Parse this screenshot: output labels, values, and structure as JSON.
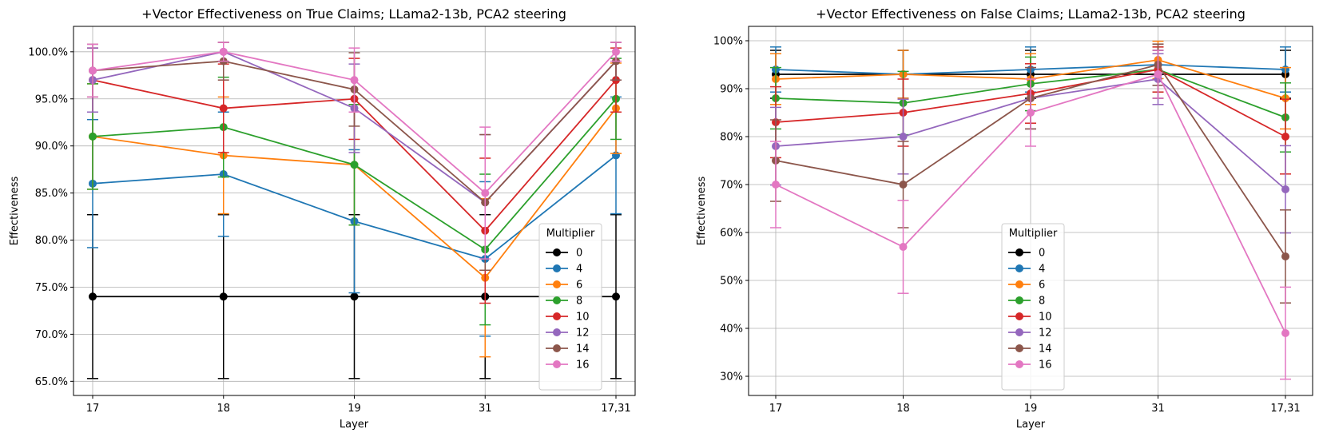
{
  "chart_data": [
    {
      "type": "line",
      "title": "+Vector Effectiveness on True Claims; LLama2-13b, PCA2 steering",
      "xlabel": "Layer",
      "ylabel": "Effectiveness",
      "categories": [
        "17",
        "18",
        "19",
        "31",
        "17,31"
      ],
      "ylim": [
        0.635,
        1.027
      ],
      "yticks": [
        0.65,
        0.7,
        0.75,
        0.8,
        0.85,
        0.9,
        0.95,
        1.0
      ],
      "ytick_labels": [
        "65.0%",
        "70.0%",
        "75.0%",
        "80.0%",
        "85.0%",
        "90.0%",
        "95.0%",
        "100.0%"
      ],
      "grid": true,
      "legend": {
        "title": "Multiplier",
        "placement": "lower-right"
      },
      "series": [
        {
          "name": "0",
          "color": "#000000",
          "values": [
            0.74,
            0.74,
            0.74,
            0.74,
            0.74
          ],
          "err": [
            0.087,
            0.087,
            0.087,
            0.087,
            0.087
          ]
        },
        {
          "name": "4",
          "color": "#1f77b4",
          "values": [
            0.86,
            0.87,
            0.82,
            0.78,
            0.89
          ],
          "err": [
            0.068,
            0.066,
            0.076,
            0.082,
            0.062
          ]
        },
        {
          "name": "6",
          "color": "#ff7f0e",
          "values": [
            0.91,
            0.89,
            0.88,
            0.76,
            0.94
          ],
          "err": [
            0.056,
            0.062,
            0.064,
            0.084,
            0.048
          ]
        },
        {
          "name": "8",
          "color": "#2ca02c",
          "values": [
            0.91,
            0.92,
            0.88,
            0.79,
            0.95
          ],
          "err": [
            0.056,
            0.053,
            0.064,
            0.08,
            0.043
          ]
        },
        {
          "name": "10",
          "color": "#d62728",
          "values": [
            0.97,
            0.94,
            0.95,
            0.81,
            0.97
          ],
          "err": [
            0.034,
            0.047,
            0.043,
            0.077,
            0.034
          ]
        },
        {
          "name": "12",
          "color": "#9467bd",
          "values": [
            0.97,
            1.0,
            0.94,
            0.84,
            0.99
          ],
          "err": [
            0.034,
            0.01,
            0.047,
            0.072,
            0.02
          ]
        },
        {
          "name": "14",
          "color": "#8c564b",
          "values": [
            0.98,
            0.99,
            0.96,
            0.84,
            0.99
          ],
          "err": [
            0.028,
            0.02,
            0.039,
            0.072,
            0.02
          ]
        },
        {
          "name": "16",
          "color": "#e377c2",
          "values": [
            0.98,
            1.0,
            0.97,
            0.85,
            1.0
          ],
          "err": [
            0.028,
            0.01,
            0.034,
            0.07,
            0.01
          ]
        }
      ]
    },
    {
      "type": "line",
      "title": "+Vector Effectiveness on False Claims; LLama2-13b, PCA2 steering",
      "xlabel": "Layer",
      "ylabel": "Effectiveness",
      "categories": [
        "17",
        "18",
        "19",
        "31",
        "17,31"
      ],
      "ylim": [
        0.26,
        1.03
      ],
      "yticks": [
        0.3,
        0.4,
        0.5,
        0.6,
        0.7,
        0.8,
        0.9,
        1.0
      ],
      "ytick_labels": [
        "30%",
        "40%",
        "50%",
        "60%",
        "70%",
        "80%",
        "90%",
        "100%"
      ],
      "grid": true,
      "legend": {
        "title": "Multiplier",
        "placement": "lower-center"
      },
      "series": [
        {
          "name": "0",
          "color": "#000000",
          "values": [
            0.93,
            0.93,
            0.93,
            0.93,
            0.93
          ],
          "err": [
            0.05,
            0.05,
            0.05,
            0.05,
            0.05
          ]
        },
        {
          "name": "4",
          "color": "#1f77b4",
          "values": [
            0.94,
            0.93,
            0.94,
            0.95,
            0.94
          ],
          "err": [
            0.047,
            0.05,
            0.047,
            0.043,
            0.047
          ]
        },
        {
          "name": "6",
          "color": "#ff7f0e",
          "values": [
            0.92,
            0.93,
            0.92,
            0.96,
            0.88
          ],
          "err": [
            0.053,
            0.05,
            0.053,
            0.039,
            0.064
          ]
        },
        {
          "name": "8",
          "color": "#2ca02c",
          "values": [
            0.88,
            0.87,
            0.91,
            0.94,
            0.84
          ],
          "err": [
            0.064,
            0.066,
            0.056,
            0.047,
            0.072
          ]
        },
        {
          "name": "10",
          "color": "#d62728",
          "values": [
            0.83,
            0.85,
            0.89,
            0.94,
            0.8
          ],
          "err": [
            0.074,
            0.07,
            0.062,
            0.047,
            0.078
          ]
        },
        {
          "name": "12",
          "color": "#9467bd",
          "values": [
            0.78,
            0.8,
            0.88,
            0.92,
            0.69
          ],
          "err": [
            0.081,
            0.078,
            0.064,
            0.053,
            0.091
          ]
        },
        {
          "name": "14",
          "color": "#8c564b",
          "values": [
            0.75,
            0.7,
            0.88,
            0.95,
            0.55
          ],
          "err": [
            0.085,
            0.09,
            0.064,
            0.043,
            0.097
          ]
        },
        {
          "name": "16",
          "color": "#e377c2",
          "values": [
            0.7,
            0.57,
            0.85,
            0.93,
            0.39
          ],
          "err": [
            0.09,
            0.097,
            0.07,
            0.05,
            0.096
          ]
        }
      ]
    }
  ]
}
